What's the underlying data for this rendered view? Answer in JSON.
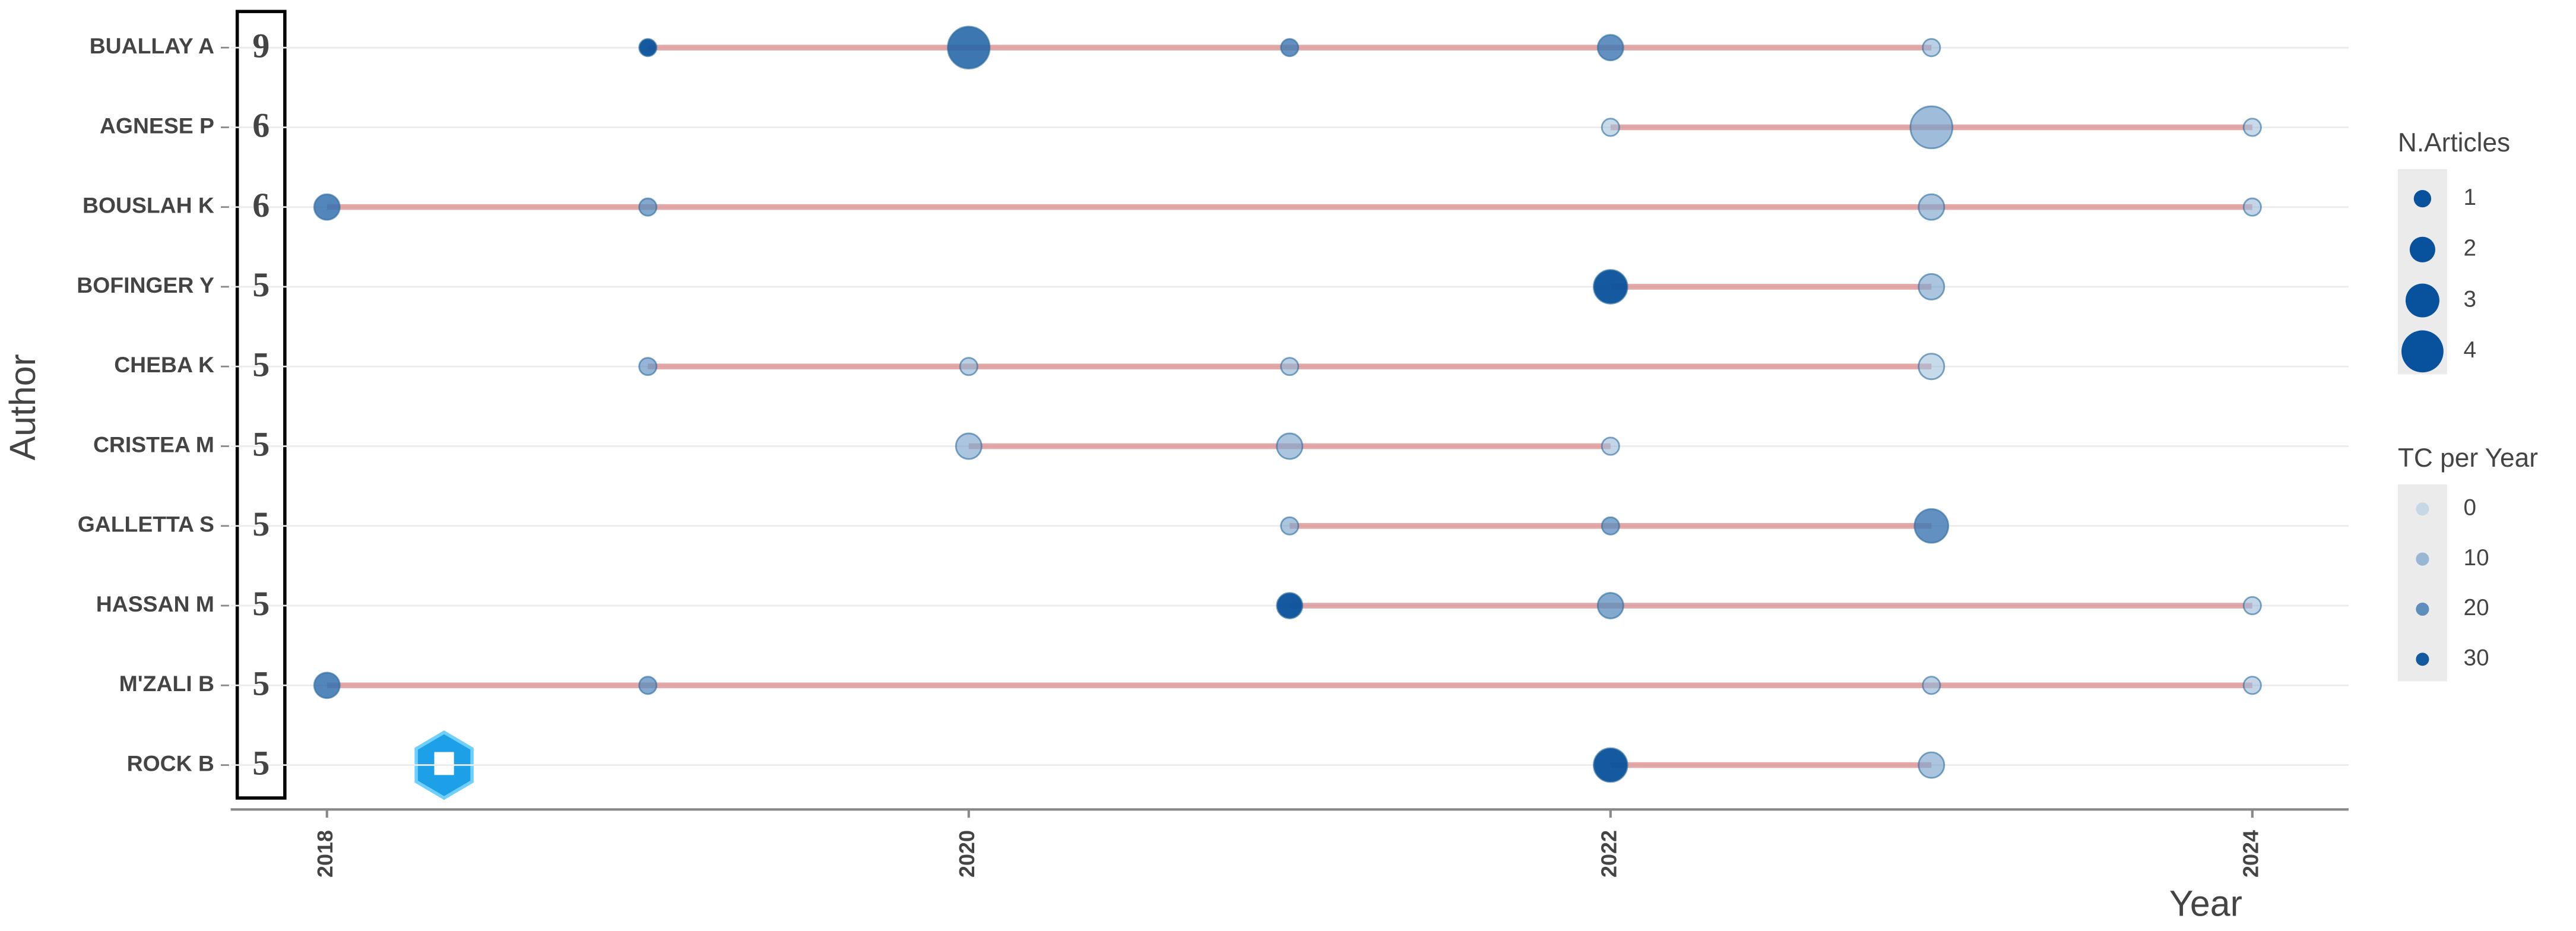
{
  "chart_data": {
    "type": "author-timeline",
    "x_label": "Year",
    "y_label": "Author",
    "xlim": [
      2017.7,
      2024.3
    ],
    "xticks": [
      2018,
      2020,
      2022,
      2024
    ],
    "line_color": "#d98c8c",
    "color_range": [
      "#a9c6e0",
      "#08519c"
    ],
    "series": [
      {
        "name": "BUALLAY A",
        "total": 9,
        "x": [
          2019,
          2020,
          2021,
          2022,
          2023
        ],
        "n_articles": [
          1,
          4,
          1,
          2,
          1
        ],
        "tc_per_year": [
          30,
          25,
          20,
          20,
          5
        ]
      },
      {
        "name": "AGNESE P",
        "total": 6,
        "x": [
          2022,
          2023,
          2024
        ],
        "n_articles": [
          1,
          4,
          1
        ],
        "tc_per_year": [
          2,
          10,
          2
        ]
      },
      {
        "name": "BOUSLAH K",
        "total": 6,
        "x": [
          2018,
          2019,
          2023,
          2024
        ],
        "n_articles": [
          2,
          1,
          2,
          1
        ],
        "tc_per_year": [
          22,
          15,
          8,
          3
        ]
      },
      {
        "name": "BOFINGER Y",
        "total": 5,
        "x": [
          2022,
          2023
        ],
        "n_articles": [
          3,
          2
        ],
        "tc_per_year": [
          30,
          8
        ]
      },
      {
        "name": "CHEBA K",
        "total": 5,
        "x": [
          2019,
          2020,
          2021,
          2023
        ],
        "n_articles": [
          1,
          1,
          1,
          2
        ],
        "tc_per_year": [
          12,
          5,
          5,
          2
        ]
      },
      {
        "name": "CRISTEA M",
        "total": 5,
        "x": [
          2020,
          2021,
          2022
        ],
        "n_articles": [
          2,
          2,
          1
        ],
        "tc_per_year": [
          8,
          8,
          3
        ]
      },
      {
        "name": "GALLETTA S",
        "total": 5,
        "x": [
          2021,
          2022,
          2023
        ],
        "n_articles": [
          1,
          1,
          3
        ],
        "tc_per_year": [
          8,
          15,
          20
        ]
      },
      {
        "name": "HASSAN M",
        "total": 5,
        "x": [
          2021,
          2022,
          2024
        ],
        "n_articles": [
          2,
          2,
          1
        ],
        "tc_per_year": [
          30,
          15,
          3
        ]
      },
      {
        "name": "M'ZALI B",
        "total": 5,
        "x": [
          2018,
          2019,
          2023,
          2024
        ],
        "n_articles": [
          2,
          1,
          1,
          1
        ],
        "tc_per_year": [
          22,
          15,
          5,
          3
        ]
      },
      {
        "name": "ROCK B",
        "total": 5,
        "x": [
          2022,
          2023
        ],
        "n_articles": [
          3,
          2
        ],
        "tc_per_year": [
          30,
          8
        ]
      }
    ],
    "size_legend": {
      "title": "N.Articles",
      "values": [
        1,
        2,
        3,
        4
      ]
    },
    "color_legend": {
      "title": "TC per Year",
      "values": [
        0,
        10,
        20,
        30
      ]
    }
  }
}
